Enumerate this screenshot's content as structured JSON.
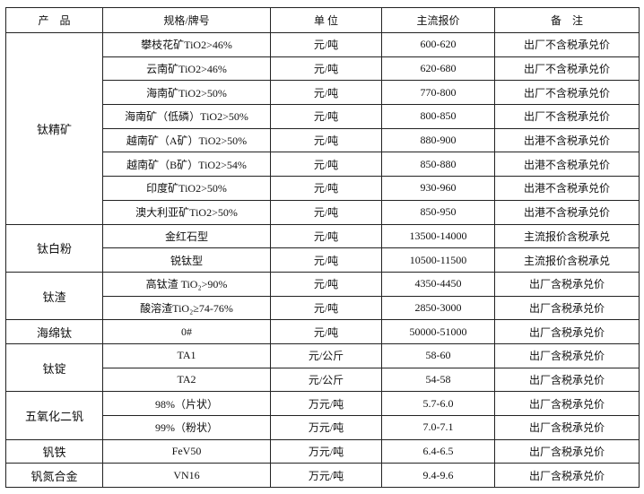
{
  "headers": [
    "产　品",
    "规格/牌号",
    "单 位",
    "主流报价",
    "备　注"
  ],
  "groups": [
    {
      "product": "钛精矿",
      "rows": [
        {
          "spec": "攀枝花矿TiO2>46%",
          "unit": "元/吨",
          "price": "600-620",
          "note": "出厂不含税承兑价"
        },
        {
          "spec": "云南矿TiO2>46%",
          "unit": "元/吨",
          "price": "620-680",
          "note": "出厂不含税承兑价"
        },
        {
          "spec": "海南矿TiO2>50%",
          "unit": "元/吨",
          "price": "770-800",
          "note": "出厂不含税承兑价"
        },
        {
          "spec": "海南矿（低磷）TiO2>50%",
          "unit": "元/吨",
          "price": "800-850",
          "note": "出厂不含税承兑价"
        },
        {
          "spec": "越南矿（A矿）TiO2>50%",
          "unit": "元/吨",
          "price": "880-900",
          "note": "出港不含税承兑价"
        },
        {
          "spec": "越南矿（B矿）TiO2>54%",
          "unit": "元/吨",
          "price": "850-880",
          "note": "出港不含税承兑价"
        },
        {
          "spec": "印度矿TiO2>50%",
          "unit": "元/吨",
          "price": "930-960",
          "note": "出港不含税承兑价"
        },
        {
          "spec": "澳大利亚矿TiO2>50%",
          "unit": "元/吨",
          "price": "850-950",
          "note": "出港不含税承兑价"
        }
      ]
    },
    {
      "product": "钛白粉",
      "rows": [
        {
          "spec": "金红石型",
          "unit": "元/吨",
          "price": "13500-14000",
          "note": "主流报价含税承兑"
        },
        {
          "spec": "锐钛型",
          "unit": "元/吨",
          "price": "10500-11500",
          "note": "主流报价含税承兑"
        }
      ]
    },
    {
      "product": "钛渣",
      "rows": [
        {
          "spec": "高钛渣 TiO₂>90%",
          "unit": "元/吨",
          "price": "4350-4450",
          "note": "出厂含税承兑价"
        },
        {
          "spec": "酸溶渣TiO₂≥74-76%",
          "unit": "元/吨",
          "price": "2850-3000",
          "note": "出厂含税承兑价"
        }
      ]
    },
    {
      "product": "海绵钛",
      "rows": [
        {
          "spec": "0#",
          "unit": "元/吨",
          "price": "50000-51000",
          "note": "出厂含税承兑价"
        }
      ]
    },
    {
      "product": "钛锭",
      "rows": [
        {
          "spec": "TA1",
          "unit": "元/公斤",
          "price": "58-60",
          "note": "出厂含税承兑价"
        },
        {
          "spec": "TA2",
          "unit": "元/公斤",
          "price": "54-58",
          "note": "出厂含税承兑价"
        }
      ]
    },
    {
      "product": "五氧化二钒",
      "rows": [
        {
          "spec": "98%（片状）",
          "unit": "万元/吨",
          "price": "5.7-6.0",
          "note": "出厂含税承兑价"
        },
        {
          "spec": "99%（粉状）",
          "unit": "万元/吨",
          "price": "7.0-7.1",
          "note": "出厂含税承兑价"
        }
      ]
    },
    {
      "product": "钒铁",
      "rows": [
        {
          "spec": "FeV50",
          "unit": "万元/吨",
          "price": "6.4-6.5",
          "note": "出厂含税承兑价"
        }
      ]
    },
    {
      "product": "钒氮合金",
      "rows": [
        {
          "spec": "VN16",
          "unit": "万元/吨",
          "price": "9.4-9.6",
          "note": "出厂含税承兑价"
        }
      ]
    }
  ]
}
